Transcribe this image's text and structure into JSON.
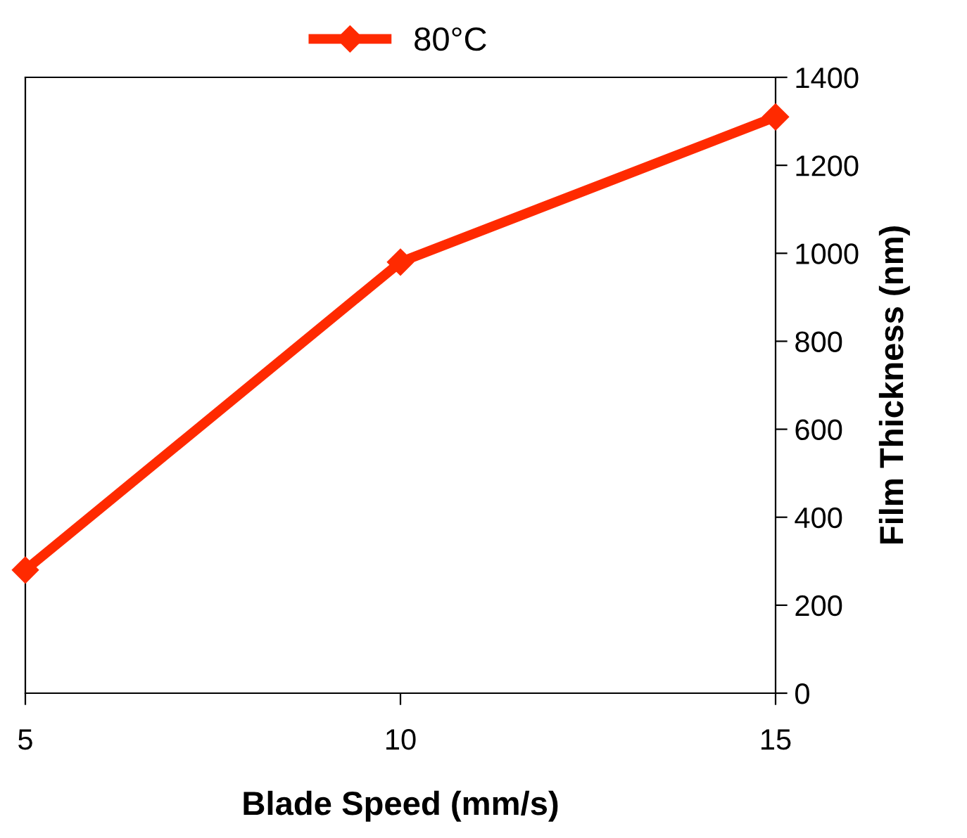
{
  "chart_data": {
    "type": "line",
    "xlabel": "Blade Speed (mm/s)",
    "ylabel": "Film Thickness (nm)",
    "x": [
      5,
      10,
      15
    ],
    "series": [
      {
        "name": "80°C",
        "color": "#ff2a00",
        "values": [
          280,
          980,
          1310
        ]
      }
    ],
    "xlim": [
      5,
      15
    ],
    "xticks": [
      5,
      10,
      15
    ],
    "ylim": [
      0,
      1400
    ],
    "yticks": [
      0,
      200,
      400,
      600,
      800,
      1000,
      1200,
      1400
    ],
    "marker": "diamond",
    "line_style": "solid",
    "grid": false,
    "legend": "top"
  }
}
